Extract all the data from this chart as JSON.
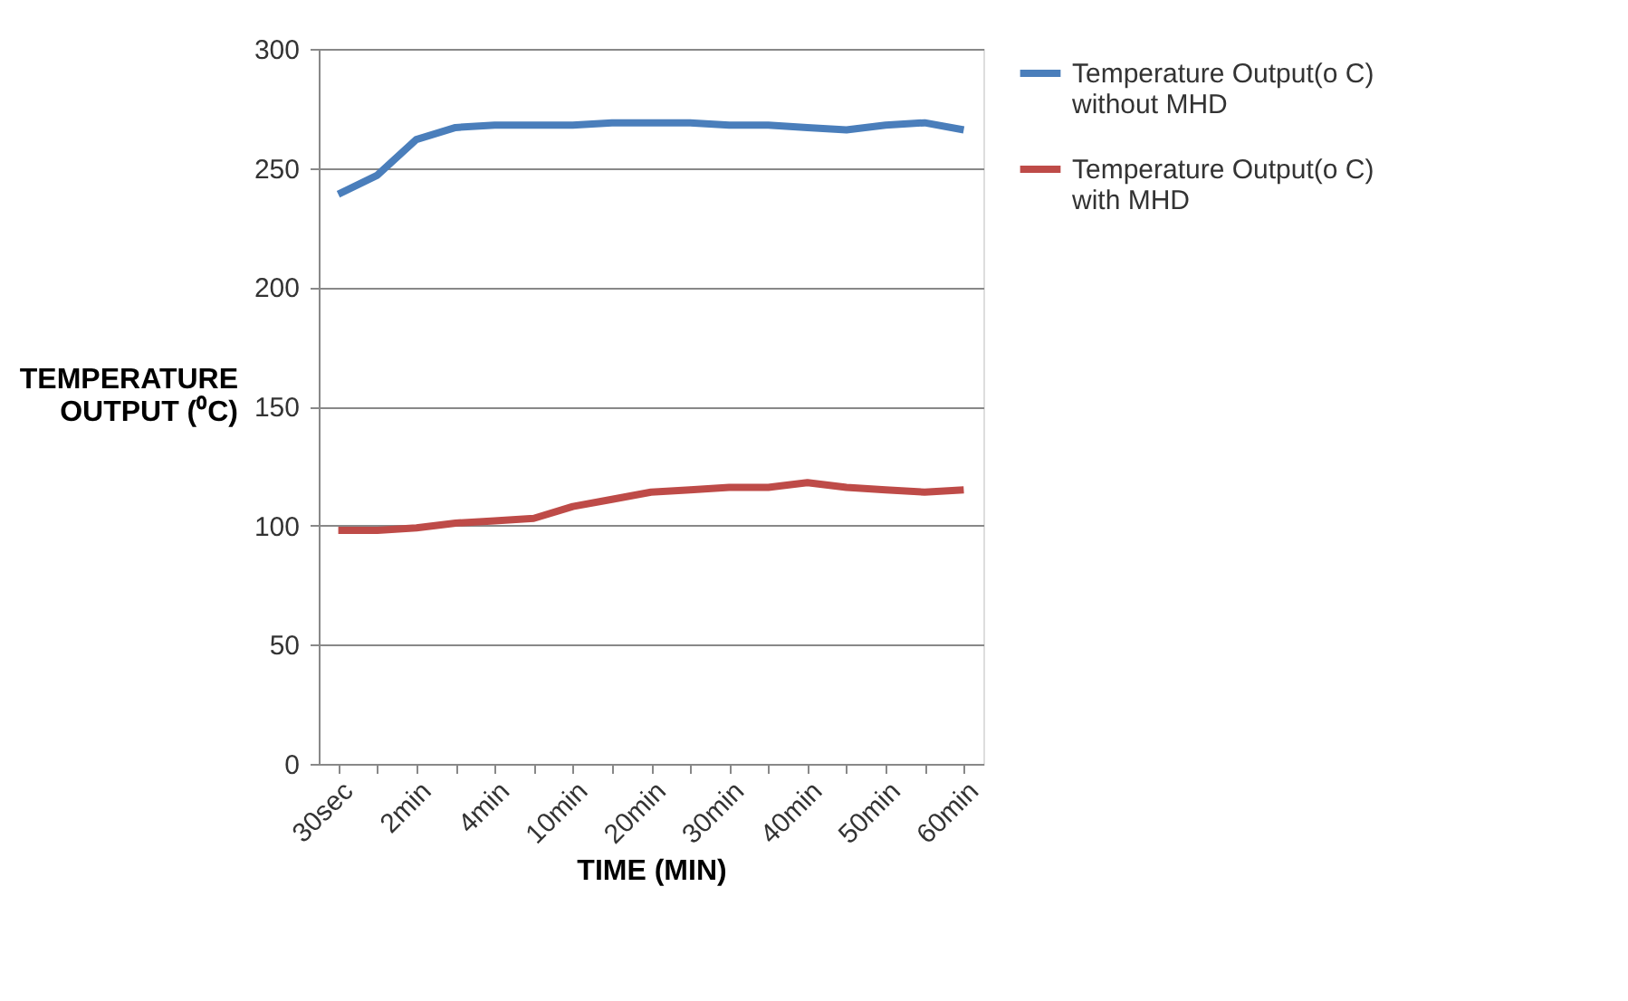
{
  "chart_data": {
    "type": "line",
    "categories": [
      "30sec",
      null,
      "2min",
      null,
      "4min",
      null,
      "10min",
      null,
      "20min",
      null,
      "30min",
      null,
      "40min",
      null,
      "50min",
      null,
      "60min"
    ],
    "series": [
      {
        "name": "Temperature Output(o C) without MHD",
        "color": "#4a7ebb",
        "values": [
          239,
          247,
          262,
          267,
          268,
          268,
          268,
          269,
          269,
          269,
          268,
          268,
          267,
          266,
          268,
          269,
          266
        ]
      },
      {
        "name": "Temperature Output(o C) with MHD",
        "color": "#be4b48",
        "values": [
          98,
          98,
          99,
          101,
          102,
          103,
          108,
          111,
          114,
          115,
          116,
          116,
          118,
          116,
          115,
          114,
          115
        ]
      }
    ],
    "xlabel": "TIME (MIN)",
    "ylabel": "TEMPERATURE OUTPUT (⁰C)",
    "ylim": [
      0,
      300
    ],
    "yticks": [
      0,
      50,
      100,
      150,
      200,
      250,
      300
    ],
    "grid": "y",
    "legend": "right",
    "marker": "none",
    "line_style": "solid"
  }
}
